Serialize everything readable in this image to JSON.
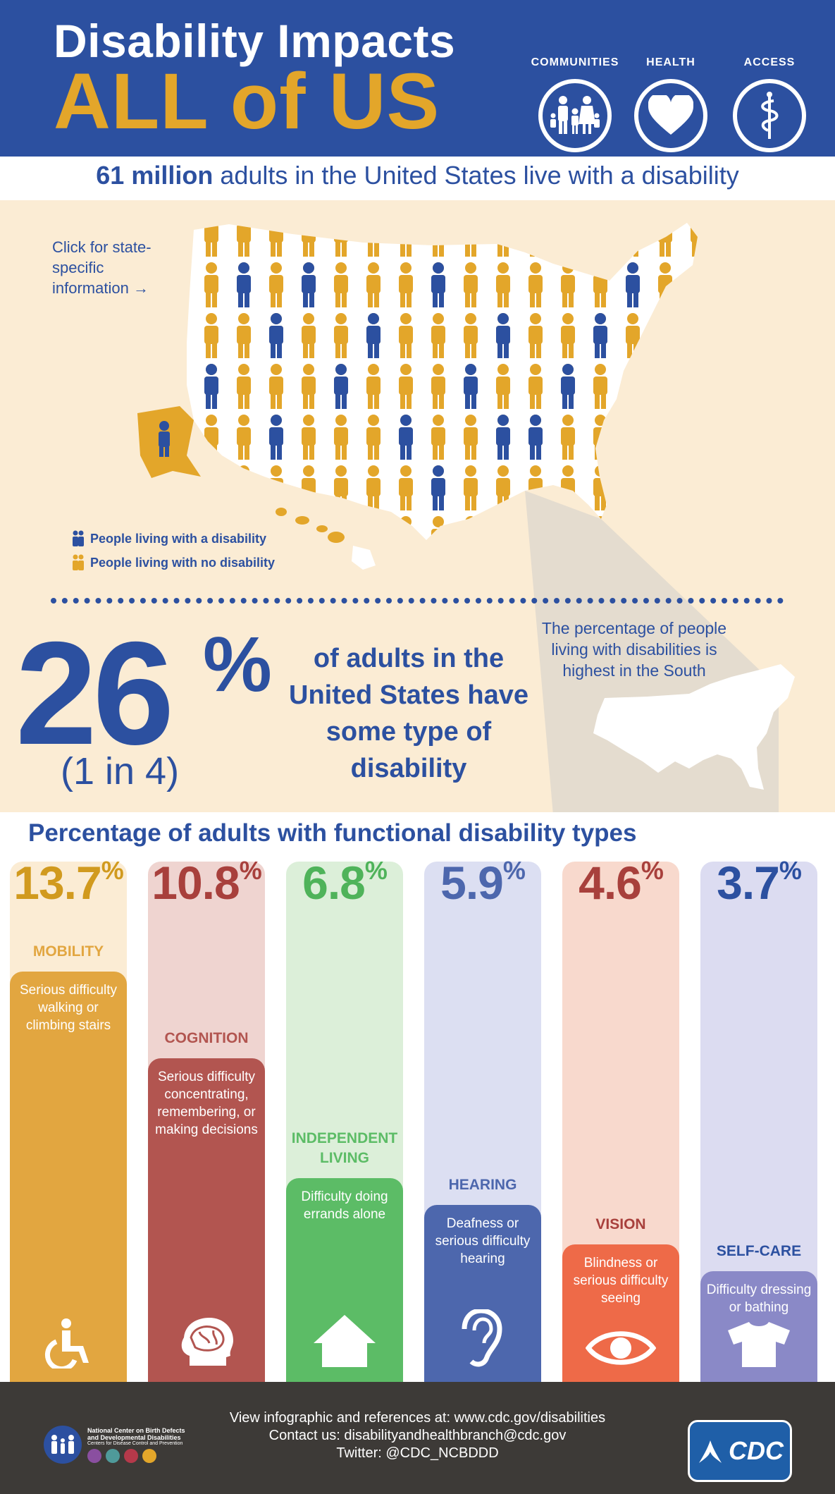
{
  "header": {
    "title_line1": "Disability Impacts",
    "title_line2": "ALL of US",
    "icons": [
      {
        "label": "COMMUNITIES",
        "icon": "family-icon"
      },
      {
        "label": "HEALTH",
        "icon": "heart-icon"
      },
      {
        "label": "ACCESS",
        "icon": "caduceus-icon"
      }
    ]
  },
  "stat_band": {
    "bold": "61 million",
    "rest": " adults in the United States live with a disability"
  },
  "map_section": {
    "click_text": "Click for state-specific information →",
    "legend": [
      {
        "label": "People living with a disability",
        "color": "#2c50a0"
      },
      {
        "label": "People living with no disability",
        "color": "#e3a62a"
      }
    ],
    "south_text": "The percentage of people living with disabilities is highest in the South"
  },
  "headline_stat": {
    "number": "26",
    "percent_sign": "%",
    "ratio": "(1 in 4)",
    "text": "of adults in the United States have some type of disability"
  },
  "functional": {
    "title": "Percentage of adults with functional disability types",
    "types": [
      {
        "percent": "13.7",
        "sign": "%",
        "label": "MOBILITY",
        "description": "Serious difficulty walking or climbing stairs",
        "icon": "wheelchair-icon",
        "color": "#e2a640",
        "light": "#fbecd4",
        "text_color": "#d19a1e",
        "value": 13.7
      },
      {
        "percent": "10.8",
        "sign": "%",
        "label": "COGNITION",
        "description": "Serious difficulty concentrating, remembering, or making decisions",
        "icon": "brain-icon",
        "color": "#b25550",
        "light": "#efd4d0",
        "text_color": "#a8403c",
        "value": 10.8
      },
      {
        "percent": "6.8",
        "sign": "%",
        "label": "INDEPENDENT LIVING",
        "description": "Difficulty doing errands alone",
        "icon": "house-icon",
        "color": "#5cbc66",
        "light": "#dcefd9",
        "text_color": "#4fb35a",
        "value": 6.8
      },
      {
        "percent": "5.9",
        "sign": "%",
        "label": "HEARING",
        "description": "Deafness or serious difficulty hearing",
        "icon": "ear-icon",
        "color": "#4d67ad",
        "light": "#dcdff2",
        "text_color": "#4d67ad",
        "value": 5.9
      },
      {
        "percent": "4.6",
        "sign": "%",
        "label": "VISION",
        "description": "Blindness or serious difficulty seeing",
        "icon": "eye-icon",
        "color": "#ee6a48",
        "light": "#f8d9cd",
        "text_color": "#a8403c",
        "value": 4.6
      },
      {
        "percent": "3.7",
        "sign": "%",
        "label": "SELF-CARE",
        "description": "Difficulty dressing or bathing",
        "icon": "shirt-icon",
        "color": "#8a89c7",
        "light": "#dcdcf1",
        "text_color": "#2c50a0",
        "value": 3.7
      }
    ]
  },
  "footer": {
    "line1": "View infographic and references at: www.cdc.gov/disabilities",
    "line2": "Contact us: disabilityandhealthbranch@cdc.gov",
    "line3": "Twitter: @CDC_NCBDDD",
    "org_line1": "National Center on Birth Defects",
    "org_line2": "and Developmental Disabilities",
    "org_line3": "Centers for Disease Control and Prevention",
    "cdc_logo_text": "CDC"
  }
}
